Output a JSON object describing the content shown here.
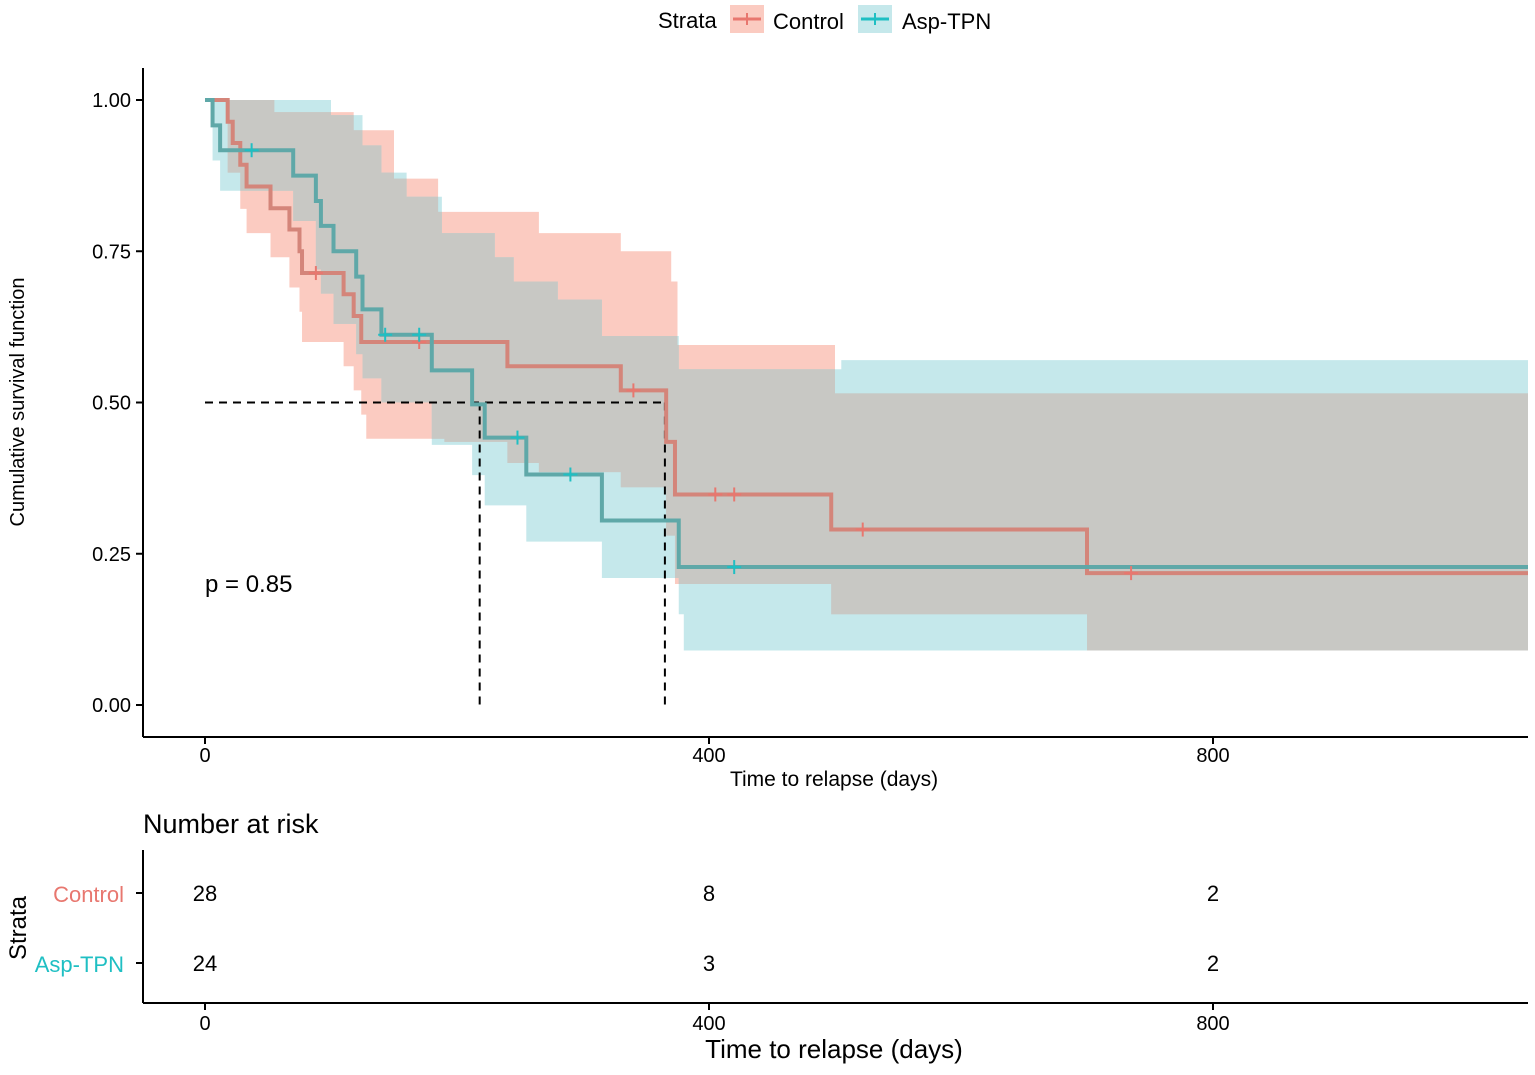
{
  "chart_data": {
    "type": "line",
    "subtype": "kaplan-meier",
    "legend": {
      "title": "Strata",
      "position": "top"
    },
    "x_axis": {
      "label": "Time to relapse (days)",
      "ticks": [
        0,
        400,
        800
      ],
      "range": [
        -50,
        1050
      ]
    },
    "y_axis": {
      "label": "Cumulative survival function",
      "ticks": [
        "0.00",
        "0.25",
        "0.50",
        "0.75",
        "1.00"
      ],
      "range": [
        -0.05,
        1.05
      ]
    },
    "annotation": "p = 0.85",
    "median_lines": {
      "y": 0.5,
      "x_control": 365,
      "x_asp": 218
    },
    "series": [
      {
        "name": "Control",
        "color": "#E8776F",
        "fill": "#F8A898",
        "steps": [
          [
            0,
            1.0
          ],
          [
            18,
            0.964
          ],
          [
            22,
            0.929
          ],
          [
            28,
            0.893
          ],
          [
            33,
            0.857
          ],
          [
            52,
            0.821
          ],
          [
            67,
            0.786
          ],
          [
            75,
            0.75
          ],
          [
            77,
            0.714
          ],
          [
            110,
            0.679
          ],
          [
            118,
            0.643
          ],
          [
            124,
            0.6
          ],
          [
            240,
            0.56
          ],
          [
            330,
            0.52
          ],
          [
            366,
            0.435
          ],
          [
            373,
            0.348
          ],
          [
            497,
            0.29
          ],
          [
            700,
            0.218
          ],
          [
            1050,
            0.218
          ]
        ],
        "ci_upper": [
          [
            0,
            1.0
          ],
          [
            28,
            1.0
          ],
          [
            55,
            0.98
          ],
          [
            118,
            0.95
          ],
          [
            150,
            0.87
          ],
          [
            185,
            0.815
          ],
          [
            255,
            0.815
          ],
          [
            265,
            0.78
          ],
          [
            325,
            0.78
          ],
          [
            330,
            0.75
          ],
          [
            365,
            0.75
          ],
          [
            370,
            0.7
          ],
          [
            375,
            0.595
          ],
          [
            497,
            0.595
          ],
          [
            500,
            0.515
          ],
          [
            700,
            0.515
          ],
          [
            1050,
            0.515
          ]
        ],
        "ci_lower": [
          [
            0,
            1.0
          ],
          [
            18,
            0.88
          ],
          [
            28,
            0.82
          ],
          [
            33,
            0.78
          ],
          [
            52,
            0.74
          ],
          [
            67,
            0.69
          ],
          [
            75,
            0.65
          ],
          [
            77,
            0.6
          ],
          [
            110,
            0.56
          ],
          [
            118,
            0.52
          ],
          [
            124,
            0.48
          ],
          [
            128,
            0.44
          ],
          [
            140,
            0.44
          ],
          [
            190,
            0.435
          ],
          [
            240,
            0.4
          ],
          [
            255,
            0.4
          ],
          [
            265,
            0.385
          ],
          [
            330,
            0.36
          ],
          [
            366,
            0.28
          ],
          [
            373,
            0.2
          ],
          [
            497,
            0.15
          ],
          [
            700,
            0.09
          ],
          [
            1050,
            0.09
          ]
        ],
        "censor_x": [
          88,
          170,
          340,
          405,
          420,
          522,
          735
        ]
      },
      {
        "name": "Asp-TPN",
        "color": "#1FBFC3",
        "fill": "#9ED8DD",
        "steps": [
          [
            0,
            1.0
          ],
          [
            6,
            0.958
          ],
          [
            12,
            0.917
          ],
          [
            70,
            0.875
          ],
          [
            88,
            0.833
          ],
          [
            92,
            0.792
          ],
          [
            102,
            0.75
          ],
          [
            120,
            0.708
          ],
          [
            125,
            0.654
          ],
          [
            140,
            0.612
          ],
          [
            180,
            0.553
          ],
          [
            212,
            0.497
          ],
          [
            222,
            0.442
          ],
          [
            255,
            0.381
          ],
          [
            315,
            0.305
          ],
          [
            376,
            0.228
          ],
          [
            1050,
            0.228
          ]
        ],
        "ci_upper": [
          [
            0,
            1.0
          ],
          [
            90,
            1.0
          ],
          [
            100,
            0.975
          ],
          [
            125,
            0.925
          ],
          [
            140,
            0.88
          ],
          [
            160,
            0.84
          ],
          [
            182,
            0.84
          ],
          [
            188,
            0.78
          ],
          [
            230,
            0.74
          ],
          [
            245,
            0.7
          ],
          [
            280,
            0.67
          ],
          [
            315,
            0.61
          ],
          [
            376,
            0.555
          ],
          [
            500,
            0.555
          ],
          [
            505,
            0.57
          ],
          [
            1050,
            0.57
          ]
        ],
        "ci_lower": [
          [
            0,
            1.0
          ],
          [
            6,
            0.9
          ],
          [
            12,
            0.85
          ],
          [
            70,
            0.8
          ],
          [
            88,
            0.72
          ],
          [
            92,
            0.68
          ],
          [
            102,
            0.63
          ],
          [
            120,
            0.58
          ],
          [
            125,
            0.54
          ],
          [
            140,
            0.5
          ],
          [
            180,
            0.43
          ],
          [
            212,
            0.38
          ],
          [
            222,
            0.33
          ],
          [
            255,
            0.27
          ],
          [
            315,
            0.21
          ],
          [
            376,
            0.15
          ],
          [
            380,
            0.09
          ],
          [
            1050,
            0.09
          ]
        ],
        "censor_x": [
          37,
          143,
          170,
          248,
          290,
          420
        ]
      }
    ],
    "risk_table": {
      "title": "Number at risk",
      "y_label": "Strata",
      "x_label": "Time to relapse (days)",
      "times": [
        0,
        400,
        800
      ],
      "rows": [
        {
          "label": "Control",
          "color": "#E8776F",
          "values": [
            "28",
            "8",
            "2"
          ]
        },
        {
          "label": "Asp-TPN",
          "color": "#1FBFC3",
          "values": [
            "24",
            "3",
            "2"
          ]
        }
      ]
    }
  }
}
